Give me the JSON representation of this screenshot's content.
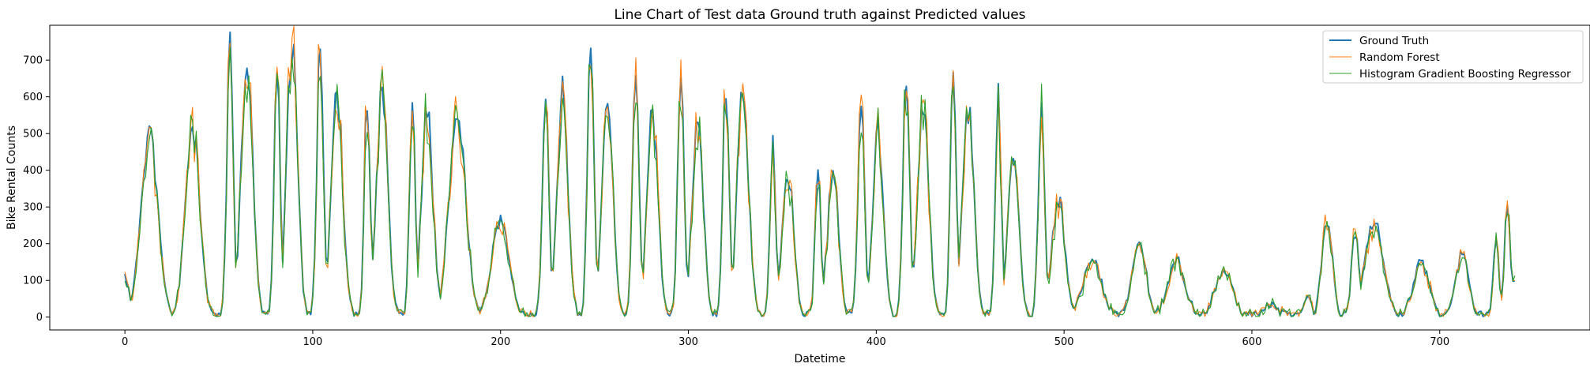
{
  "chart_data": {
    "type": "line",
    "title": "Line Chart of Test data Ground truth against Predicted values",
    "xlabel": "Datetime",
    "ylabel": "Bike Rental Counts",
    "xlim": [
      -40,
      780
    ],
    "ylim": [
      -35,
      795
    ],
    "xticks": [
      0,
      100,
      200,
      300,
      400,
      500,
      600,
      700
    ],
    "yticks": [
      0,
      100,
      200,
      300,
      400,
      500,
      600,
      700
    ],
    "grid": false,
    "legend_position": "upper right",
    "series": [
      {
        "name": "Ground Truth",
        "color": "#1f77b4",
        "width": 2.0
      },
      {
        "name": "Random Forest",
        "color": "#ff7f0e",
        "width": 1.1
      },
      {
        "name": "Histogram Gradient Boosting Regressor",
        "color": "#2ca02c",
        "width": 1.1
      }
    ],
    "n_points": 740,
    "ground_truth_peaks": [
      [
        0,
        108
      ],
      [
        13,
        510
      ],
      [
        36,
        520
      ],
      [
        56,
        730
      ],
      [
        65,
        710
      ],
      [
        81,
        720
      ],
      [
        89,
        740
      ],
      [
        104,
        760
      ],
      [
        113,
        610
      ],
      [
        129,
        600
      ],
      [
        137,
        615
      ],
      [
        153,
        580
      ],
      [
        161,
        560
      ],
      [
        177,
        545
      ],
      [
        200,
        260
      ],
      [
        224,
        585
      ],
      [
        233,
        615
      ],
      [
        248,
        725
      ],
      [
        257,
        600
      ],
      [
        272,
        685
      ],
      [
        281,
        560
      ],
      [
        296,
        650
      ],
      [
        305,
        550
      ],
      [
        320,
        630
      ],
      [
        329,
        620
      ],
      [
        345,
        455
      ],
      [
        353,
        390
      ],
      [
        369,
        415
      ],
      [
        377,
        400
      ],
      [
        392,
        590
      ],
      [
        401,
        510
      ],
      [
        416,
        660
      ],
      [
        425,
        570
      ],
      [
        441,
        680
      ],
      [
        449,
        570
      ],
      [
        465,
        600
      ],
      [
        473,
        450
      ],
      [
        488,
        560
      ],
      [
        497,
        320
      ],
      [
        515,
        160
      ],
      [
        540,
        195
      ],
      [
        560,
        150
      ],
      [
        585,
        120
      ],
      [
        610,
        35
      ],
      [
        630,
        60
      ],
      [
        640,
        260
      ],
      [
        655,
        230
      ],
      [
        665,
        270
      ],
      [
        690,
        150
      ],
      [
        712,
        170
      ],
      [
        730,
        200
      ],
      [
        736,
        315
      ],
      [
        740,
        90
      ]
    ]
  }
}
